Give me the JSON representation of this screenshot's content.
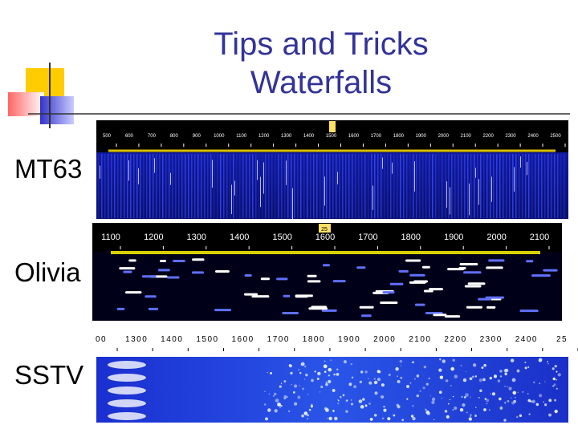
{
  "title": [
    "Tips and Tricks",
    "Waterfalls"
  ],
  "panels": [
    {
      "label": "MT63",
      "scale": [
        "500",
        "600",
        "700",
        "800",
        "900",
        "1000",
        "1100",
        "1200",
        "1300",
        "1400",
        "1500",
        "1600",
        "1700",
        "1800",
        "1900",
        "2000",
        "2100",
        "2200",
        "2300",
        "2400",
        "2500"
      ]
    },
    {
      "label": "Olivia",
      "marker": "25",
      "scale": [
        "1100",
        "1200",
        "1300",
        "1400",
        "1500",
        "1600",
        "1700",
        "1800",
        "1900",
        "2000",
        "2100"
      ]
    },
    {
      "label": "SSTV",
      "scale": [
        "00",
        "1300",
        "1400",
        "1500",
        "1600",
        "1700",
        "1800",
        "1900",
        "2000",
        "2100",
        "2200",
        "2300",
        "2400",
        "25"
      ]
    }
  ]
}
